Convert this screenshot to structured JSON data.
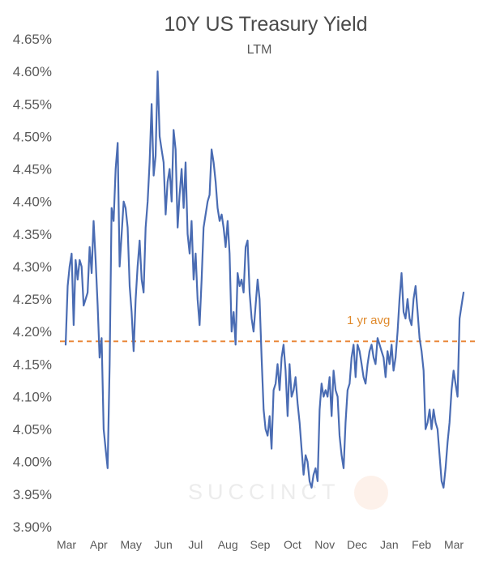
{
  "chart_data": {
    "type": "line",
    "title": "10Y US Treasury Yield",
    "subtitle": "LTM",
    "watermark": "SUCCINCT",
    "xlabel": "",
    "ylabel": "",
    "y_unit": "%",
    "ylim": [
      3.9,
      4.65
    ],
    "yticks": [
      "4.65%",
      "4.60%",
      "4.55%",
      "4.50%",
      "4.45%",
      "4.40%",
      "4.35%",
      "4.30%",
      "4.25%",
      "4.20%",
      "4.15%",
      "4.10%",
      "4.05%",
      "4.00%",
      "3.95%",
      "3.90%"
    ],
    "ytick_values": [
      4.65,
      4.6,
      4.55,
      4.5,
      4.45,
      4.4,
      4.35,
      4.3,
      4.25,
      4.2,
      4.15,
      4.1,
      4.05,
      4.0,
      3.95,
      3.9
    ],
    "xticks": [
      "Mar",
      "Apr",
      "May",
      "Jun",
      "Jul",
      "Aug",
      "Sep",
      "Oct",
      "Nov",
      "Dec",
      "Jan",
      "Feb",
      "Mar"
    ],
    "grid": false,
    "legend": "none",
    "series": [
      {
        "color": "#4a6cb3",
        "values": [
          4.18,
          4.27,
          4.3,
          4.32,
          4.21,
          4.31,
          4.28,
          4.31,
          4.3,
          4.24,
          4.25,
          4.26,
          4.33,
          4.29,
          4.37,
          4.31,
          4.24,
          4.16,
          4.19,
          4.05,
          4.02,
          3.99,
          4.15,
          4.39,
          4.37,
          4.45,
          4.49,
          4.3,
          4.35,
          4.4,
          4.39,
          4.36,
          4.27,
          4.23,
          4.17,
          4.25,
          4.3,
          4.34,
          4.28,
          4.26,
          4.36,
          4.4,
          4.46,
          4.55,
          4.44,
          4.47,
          4.6,
          4.5,
          4.48,
          4.46,
          4.38,
          4.43,
          4.45,
          4.4,
          4.51,
          4.48,
          4.36,
          4.41,
          4.45,
          4.39,
          4.46,
          4.35,
          4.32,
          4.37,
          4.28,
          4.32,
          4.25,
          4.21,
          4.28,
          4.36,
          4.38,
          4.4,
          4.41,
          4.48,
          4.46,
          4.43,
          4.39,
          4.37,
          4.38,
          4.36,
          4.33,
          4.37,
          4.32,
          4.2,
          4.23,
          4.18,
          4.29,
          4.27,
          4.28,
          4.26,
          4.33,
          4.34,
          4.26,
          4.22,
          4.2,
          4.24,
          4.28,
          4.25,
          4.16,
          4.08,
          4.05,
          4.04,
          4.07,
          4.02,
          4.11,
          4.12,
          4.15,
          4.11,
          4.16,
          4.18,
          4.14,
          4.07,
          4.15,
          4.1,
          4.11,
          4.13,
          4.09,
          4.06,
          4.02,
          3.98,
          4.01,
          4.0,
          3.97,
          3.96,
          3.98,
          3.99,
          3.97,
          4.08,
          4.12,
          4.1,
          4.11,
          4.1,
          4.13,
          4.07,
          4.14,
          4.11,
          4.1,
          4.04,
          4.01,
          3.99,
          4.06,
          4.11,
          4.12,
          4.16,
          4.18,
          4.13,
          4.18,
          4.17,
          4.15,
          4.13,
          4.12,
          4.15,
          4.17,
          4.18,
          4.16,
          4.15,
          4.19,
          4.18,
          4.17,
          4.16,
          4.13,
          4.17,
          4.15,
          4.18,
          4.14,
          4.16,
          4.2,
          4.25,
          4.29,
          4.23,
          4.22,
          4.25,
          4.22,
          4.21,
          4.25,
          4.27,
          4.23,
          4.19,
          4.17,
          4.14,
          4.05,
          4.06,
          4.08,
          4.05,
          4.08,
          4.06,
          4.05,
          4.01,
          3.97,
          3.96,
          3.99,
          4.03,
          4.06,
          4.11,
          4.14,
          4.12,
          4.1,
          4.22,
          4.24,
          4.26
        ],
        "average": {
          "value": 4.185,
          "label": "1 yr avg",
          "color": "#e9883a"
        }
      }
    ]
  }
}
